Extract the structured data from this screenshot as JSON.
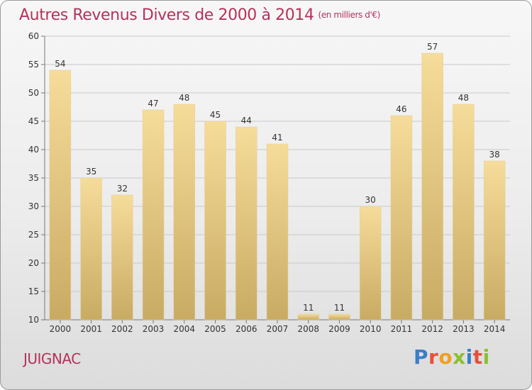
{
  "title": "Autres Revenus Divers de 2000 à 2014",
  "unit": "(en milliers d'€)",
  "commune": "JUIGNAC",
  "logo": {
    "text": "Proxiti",
    "colors": [
      "#3a7fc8",
      "#e8503a",
      "#f0a020",
      "#8bbf2e",
      "#3a7fc8",
      "#e8503a",
      "#8bbf2e"
    ]
  },
  "colors": {
    "title": "#b5325a",
    "bar_light": "#f6dc9a",
    "bar_dark": "#c8ab63",
    "grid": "#c9c9c9"
  },
  "chart_data": {
    "type": "bar",
    "categories": [
      "2000",
      "2001",
      "2002",
      "2003",
      "2004",
      "2005",
      "2006",
      "2007",
      "2008",
      "2009",
      "2010",
      "2011",
      "2012",
      "2013",
      "2014"
    ],
    "values": [
      54,
      35,
      32,
      47,
      48,
      45,
      44,
      41,
      11,
      11,
      30,
      46,
      57,
      48,
      38
    ],
    "ylim": [
      10,
      60
    ],
    "yticks": [
      10,
      15,
      20,
      25,
      30,
      35,
      40,
      45,
      50,
      55,
      60
    ],
    "grid": true,
    "legend": false
  }
}
